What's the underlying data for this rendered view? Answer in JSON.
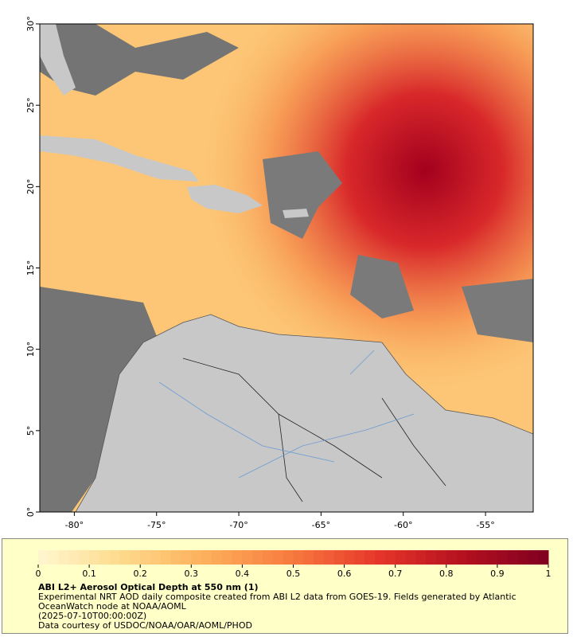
{
  "map": {
    "xlim": [
      -82.1,
      -52.1
    ],
    "ylim": [
      0,
      30
    ],
    "xticks": [
      {
        "value": -80,
        "label": "-80°"
      },
      {
        "value": -75,
        "label": "-75°"
      },
      {
        "value": -70,
        "label": "-70°"
      },
      {
        "value": -65,
        "label": "-65°"
      },
      {
        "value": -60,
        "label": "-60°"
      },
      {
        "value": -55,
        "label": "-55°"
      }
    ],
    "yticks": [
      {
        "value": 0,
        "label": "0°"
      },
      {
        "value": 5,
        "label": "5°"
      },
      {
        "value": 10,
        "label": "10°"
      },
      {
        "value": 15,
        "label": "15°"
      },
      {
        "value": 20,
        "label": "20°"
      },
      {
        "value": 25,
        "label": "25°"
      },
      {
        "value": 30,
        "label": "30°"
      }
    ]
  },
  "colorbar": {
    "title": "ABI L2+ Aerosol Optical Depth at 550 nm (1)",
    "lim": [
      0,
      1
    ],
    "ticks": [
      0,
      0.1,
      0.2,
      0.3,
      0.4,
      0.5,
      0.6,
      0.7,
      0.8,
      0.9,
      1
    ],
    "colors": [
      "#fff7d0",
      "#fed98a",
      "#fdae5a",
      "#f7793e",
      "#e6362a",
      "#b4101f",
      "#7f0021"
    ]
  },
  "notes": [
    "Experimental NRT AOD daily composite created from ABI L2 data from GOES-19. Fields generated by Atlantic OceanWatch node at NOAA/AOML",
    "(2025-07-10T00:00:00Z)",
    "Data courtesy of USDOC/NOAA/OAR/AOML/PHOD"
  ]
}
